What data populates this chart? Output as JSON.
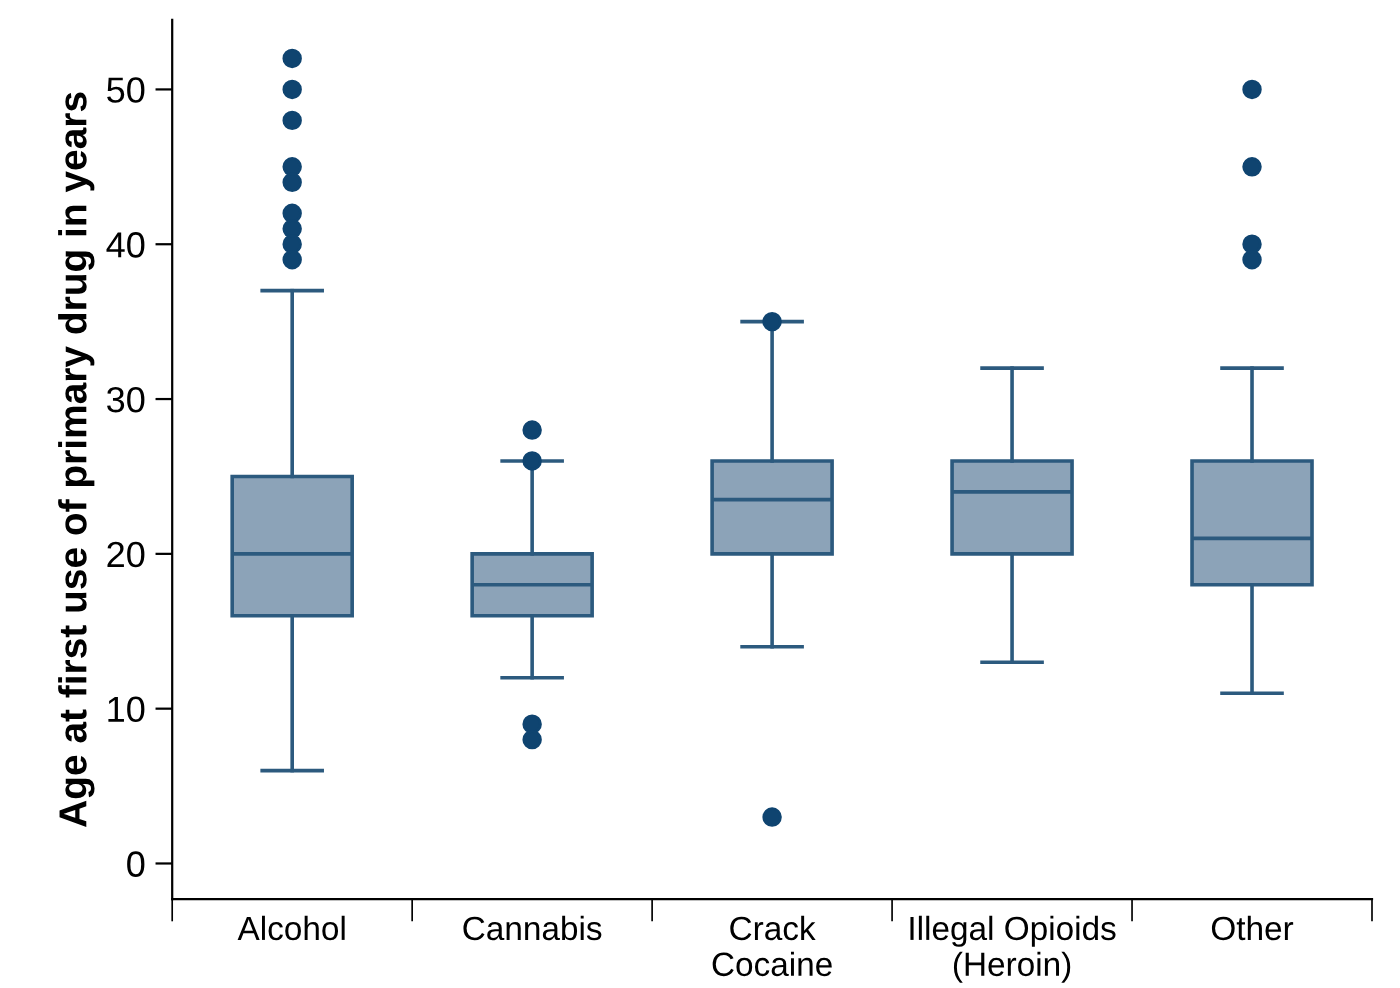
{
  "chart_data": {
    "type": "box",
    "ylabel": "Age at first use of primary drug in years",
    "categories": [
      "Alcohol",
      "Cannabis",
      "Crack\nCocaine",
      "Illegal Opioids\n(Heroin)",
      "Other"
    ],
    "color": "#8ca3b8",
    "boxes": [
      {
        "low": 6,
        "q1": 16,
        "median": 20,
        "q3": 25,
        "high": 37,
        "outliers": [
          52,
          50,
          48,
          45,
          44,
          42,
          41,
          40,
          39
        ]
      },
      {
        "low": 12,
        "q1": 16,
        "median": 18,
        "q3": 20,
        "high": 26,
        "outliers": [
          28,
          26,
          9,
          8
        ]
      },
      {
        "low": 14,
        "q1": 20,
        "median": 23.5,
        "q3": 26,
        "high": 35,
        "outliers": [
          35,
          3
        ]
      },
      {
        "low": 13,
        "q1": 20,
        "median": 24,
        "q3": 26,
        "high": 32
      },
      {
        "low": 11,
        "q1": 18,
        "median": 21,
        "q3": 26,
        "high": 32,
        "outliers": [
          50,
          45,
          40,
          39
        ]
      }
    ],
    "ylim": [
      -2.3,
      54.5
    ],
    "yticks": [
      0,
      10,
      20,
      30,
      40,
      50
    ],
    "grid": false
  }
}
